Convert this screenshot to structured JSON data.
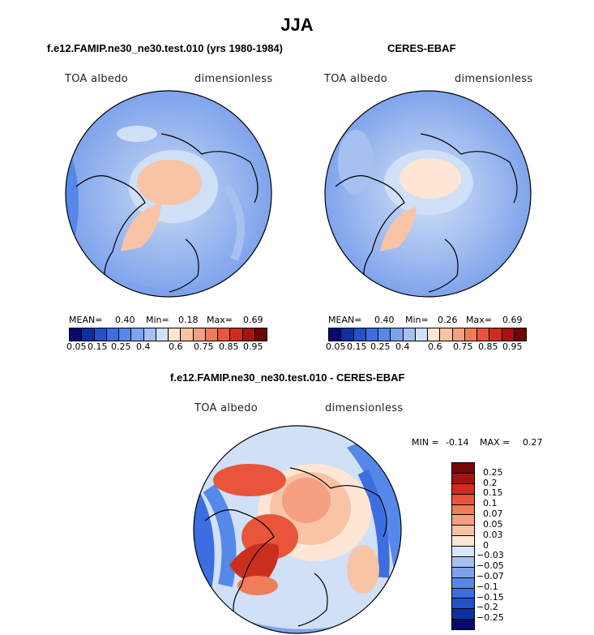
{
  "title": "JJA",
  "panels": [
    {
      "subtitle": "f.e12.FAMIP.ne30_ne30.test.010 (yrs 1980-1984)",
      "left_label": "TOA albedo",
      "right_label": "dimensionless",
      "stats": {
        "mean_label": "MEAN=",
        "mean": "0.40",
        "min_label": "Min=",
        "min": "0.18",
        "max_label": "Max=",
        "max": "0.69"
      },
      "colorbar_ticks": [
        "0.05",
        "0.15",
        "0.25",
        "0.4",
        "0.6",
        "0.75",
        "0.85",
        "0.95"
      ]
    },
    {
      "subtitle": "CERES-EBAF",
      "left_label": "TOA albedo",
      "right_label": "dimensionless",
      "stats": {
        "mean_label": "MEAN=",
        "mean": "0.40",
        "min_label": "Min=",
        "min": "0.26",
        "max_label": "Max=",
        "max": "0.69"
      },
      "colorbar_ticks": [
        "0.05",
        "0.15",
        "0.25",
        "0.4",
        "0.6",
        "0.75",
        "0.85",
        "0.95"
      ]
    }
  ],
  "diff_panel": {
    "subtitle": "f.e12.FAMIP.ne30_ne30.test.010 - CERES-EBAF",
    "left_label": "TOA albedo",
    "right_label": "dimensionless",
    "stats": {
      "min_label": "MIN =",
      "min": "-0.14",
      "max_label": "MAX =",
      "max": "0.27"
    },
    "colorbar_ticks": [
      "0.25",
      "0.2",
      "0.15",
      "0.1",
      "0.07",
      "0.05",
      "0.03",
      "0",
      "−0.03",
      "−0.05",
      "−0.07",
      "−0.1",
      "−0.15",
      "−0.2",
      "−0.25"
    ]
  },
  "colors": {
    "seq": [
      "#08086e",
      "#0e2fa0",
      "#2352c8",
      "#3c6ee0",
      "#5588e8",
      "#7ea3ec",
      "#a6c0f0",
      "#cfe0f7",
      "#fde6d4",
      "#f9c3a6",
      "#f5a080",
      "#f07d5a",
      "#e8553a",
      "#cc2e1e",
      "#a61410",
      "#6e0606"
    ],
    "diff": [
      "#7a0606",
      "#a31410",
      "#cc2e1e",
      "#e8553a",
      "#f07d5a",
      "#f5a080",
      "#f9c3a6",
      "#fde6d4",
      "#d7e6f8",
      "#a6c0f0",
      "#7ea3ec",
      "#5588e8",
      "#3c6ee0",
      "#2352c8",
      "#0e2fa0",
      "#08086e"
    ]
  }
}
